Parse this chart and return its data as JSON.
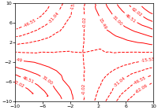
{
  "xlim": [
    -10,
    10
  ],
  "ylim": [
    -10,
    10
  ],
  "xticks": [
    -10,
    -6,
    -2,
    2,
    6,
    10
  ],
  "yticks": [
    -10,
    -6,
    -2,
    2,
    6,
    10
  ],
  "contour_color": "#ff0000",
  "n_levels": 10,
  "label_fontsize": 4,
  "background_color": "#ffffff",
  "figsize": [
    2.0,
    1.4
  ],
  "dpi": 100,
  "n_points": 200,
  "seed": 12345,
  "linewidths": 0.7
}
